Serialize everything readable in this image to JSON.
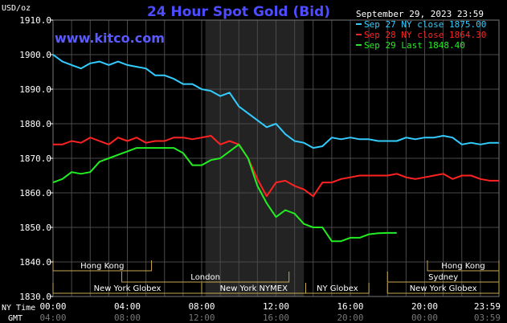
{
  "chart_data": {
    "type": "line",
    "title": "24 Hour Spot Gold (Bid)",
    "watermark": "www.kitco.com",
    "date_label": "September 29, 2023 23:59",
    "ylabel": "USD/oz",
    "ylim": [
      1830.0,
      1910.0
    ],
    "yticks": [
      "1830.0",
      "1840.0",
      "1850.0",
      "1860.0",
      "1870.0",
      "1880.0",
      "1890.0",
      "1900.0",
      "1910.0"
    ],
    "xlim_hours": [
      0,
      24
    ],
    "x_row_labels": {
      "ny": "NY Time",
      "gmt": "GMT"
    },
    "xticks_ny": [
      "00:00",
      "04:00",
      "08:00",
      "12:00",
      "16:00",
      "20:00",
      "23:59"
    ],
    "xticks_gmt": [
      "04:00",
      "08:00",
      "12:00",
      "16:00",
      "20:00",
      "00:00",
      "03:59"
    ],
    "nymex_shade_hours": [
      8.2,
      13.5
    ],
    "grid": true,
    "legend": "top-right",
    "series": [
      {
        "name": "Sep 27 NY close 1875.00",
        "color": "#33ccff",
        "x": [
          0,
          0.5,
          1,
          1.5,
          2,
          2.5,
          3,
          3.5,
          4,
          4.5,
          5,
          5.5,
          6,
          6.5,
          7,
          7.5,
          8,
          8.5,
          9,
          9.5,
          10,
          10.5,
          11,
          11.5,
          12,
          12.5,
          13,
          13.5,
          14,
          14.5,
          15,
          15.5,
          16,
          16.5,
          17,
          17.5,
          18,
          18.5,
          19,
          19.5,
          20,
          20.5,
          21,
          21.5,
          22,
          22.5,
          23,
          23.5,
          23.99
        ],
        "values": [
          1900,
          1898,
          1897,
          1896,
          1897.5,
          1898,
          1897,
          1898,
          1897,
          1896.5,
          1896,
          1894,
          1894,
          1893,
          1891.5,
          1891.5,
          1890,
          1889.5,
          1888,
          1889,
          1885,
          1883,
          1881,
          1879,
          1880,
          1877,
          1875,
          1874.5,
          1873,
          1873.5,
          1876,
          1875.5,
          1876,
          1875.5,
          1875.5,
          1875,
          1875,
          1875,
          1876,
          1875.5,
          1876,
          1876,
          1876.5,
          1876,
          1874,
          1874.5,
          1874,
          1874.5,
          1874.5
        ]
      },
      {
        "name": "Sep 28 NY close 1864.30",
        "color": "#ff2222",
        "x": [
          0,
          0.5,
          1,
          1.5,
          2,
          2.5,
          3,
          3.5,
          4,
          4.5,
          5,
          5.5,
          6,
          6.5,
          7,
          7.5,
          8,
          8.5,
          9,
          9.5,
          10,
          10.5,
          11,
          11.5,
          12,
          12.5,
          13,
          13.5,
          14,
          14.5,
          15,
          15.5,
          16,
          16.5,
          17,
          17.5,
          18,
          18.5,
          19,
          19.5,
          20,
          20.5,
          21,
          21.5,
          22,
          22.5,
          23,
          23.5,
          23.99
        ],
        "values": [
          1874,
          1874,
          1875,
          1874.5,
          1876,
          1875,
          1874,
          1876,
          1875,
          1876,
          1874.5,
          1875,
          1875,
          1876,
          1876,
          1875.5,
          1876,
          1876.5,
          1874,
          1875,
          1874,
          1870,
          1864,
          1859,
          1863,
          1863.5,
          1862,
          1861,
          1859,
          1863,
          1863,
          1864,
          1864.5,
          1865,
          1865,
          1865,
          1865,
          1865.5,
          1864.5,
          1864,
          1864.5,
          1865,
          1865.5,
          1864,
          1865,
          1865,
          1864,
          1863.5,
          1863.5
        ]
      },
      {
        "name": "Sep 29 Last 1848.40",
        "color": "#22ee22",
        "x": [
          0,
          0.5,
          1,
          1.5,
          2,
          2.5,
          3,
          3.5,
          4,
          4.5,
          5,
          5.5,
          6,
          6.5,
          7,
          7.5,
          8,
          8.5,
          9,
          9.5,
          10,
          10.5,
          11,
          11.5,
          12,
          12.5,
          13,
          13.5,
          14,
          14.5,
          15,
          15.5,
          16,
          16.5,
          17,
          17.5,
          18,
          18.5
        ],
        "values": [
          1863,
          1864,
          1866,
          1865.5,
          1866,
          1869,
          1870,
          1871,
          1872,
          1873,
          1873,
          1873,
          1873,
          1873,
          1871.5,
          1868,
          1868,
          1869.5,
          1870,
          1872,
          1874,
          1870,
          1862,
          1857,
          1853,
          1855,
          1854,
          1851,
          1850,
          1850,
          1846,
          1846,
          1847,
          1847,
          1848,
          1848.3,
          1848.4,
          1848.4
        ]
      }
    ]
  },
  "sessions": [
    {
      "label": "Hong Kong",
      "start": 0.0,
      "end": 5.3,
      "row": 0
    },
    {
      "label": "London",
      "start": 3.7,
      "end": 12.7,
      "row": 1
    },
    {
      "label": "New York Globex",
      "start": 0.0,
      "end": 8.0,
      "row": 2
    },
    {
      "label": "New York NYMEX",
      "start": 8.0,
      "end": 13.6,
      "row": 2
    },
    {
      "label": "NY Globex",
      "start": 13.6,
      "end": 17.0,
      "row": 2
    },
    {
      "label": "Hong Kong",
      "start": 20.15,
      "end": 24.0,
      "row": 0
    },
    {
      "label": "Sydney",
      "start": 18.0,
      "end": 24.0,
      "row": 1
    },
    {
      "label": "New York Globex",
      "start": 18.0,
      "end": 24.0,
      "row": 2
    }
  ],
  "colors": {
    "background": "#000000",
    "grid": "#4a4a4a",
    "shade": "#232323",
    "axis_text": "#ffffff",
    "title": "#4d4dff",
    "watermark": "#5a5aff",
    "session_line": "#c8a850",
    "session_text": "#ffffff"
  }
}
